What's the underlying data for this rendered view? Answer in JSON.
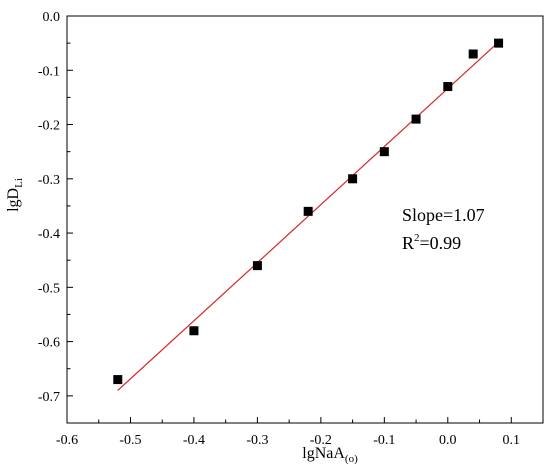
{
  "chart_data": {
    "type": "scatter",
    "xlabel": "lgNaA",
    "xlabel_sub": "(o)",
    "ylabel": "lgD",
    "ylabel_sub": "Li",
    "xlim": [
      -0.6,
      0.15
    ],
    "ylim": [
      -0.75,
      0.0
    ],
    "xticks": [
      -0.6,
      -0.5,
      -0.4,
      -0.3,
      -0.2,
      -0.1,
      0.0,
      0.1
    ],
    "xtick_labels": [
      "-0.6",
      "-0.5",
      "-0.4",
      "-0.3",
      "-0.2",
      "-0.1",
      "0.0",
      "0.1"
    ],
    "yticks": [
      0.0,
      -0.1,
      -0.2,
      -0.3,
      -0.4,
      -0.5,
      -0.6,
      -0.7
    ],
    "ytick_labels": [
      "0.0",
      "-0.1",
      "-0.2",
      "-0.3",
      "-0.4",
      "-0.5",
      "-0.6",
      "-0.7"
    ],
    "grid": false,
    "marker_color": "#000000",
    "fit_color": "#d62728",
    "points": [
      {
        "x": -0.52,
        "y": -0.67
      },
      {
        "x": -0.4,
        "y": -0.58
      },
      {
        "x": -0.3,
        "y": -0.46
      },
      {
        "x": -0.22,
        "y": -0.36
      },
      {
        "x": -0.15,
        "y": -0.3
      },
      {
        "x": -0.1,
        "y": -0.25
      },
      {
        "x": -0.05,
        "y": -0.19
      },
      {
        "x": 0.0,
        "y": -0.13
      },
      {
        "x": 0.04,
        "y": -0.07
      },
      {
        "x": 0.08,
        "y": -0.05
      }
    ],
    "fit_line": {
      "x": [
        -0.52,
        0.08
      ],
      "y": [
        -0.69,
        -0.048
      ]
    },
    "annotation_slope": "Slope=1.07",
    "annotation_r2_base": "R",
    "annotation_r2_sup": "2",
    "annotation_r2_value": "=0.99"
  }
}
